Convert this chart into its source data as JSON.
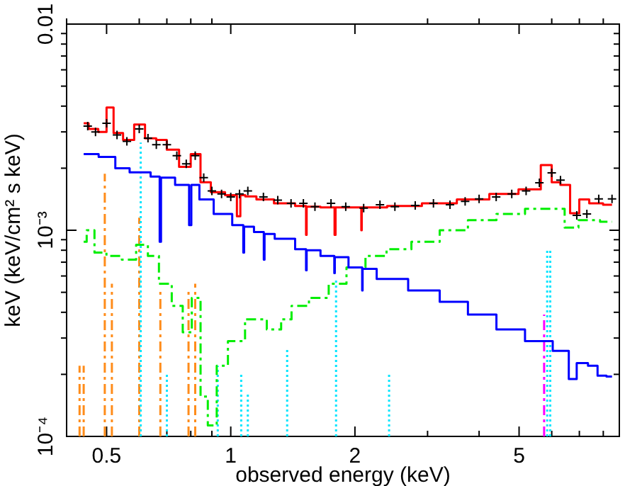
{
  "chart_data": {
    "type": "step",
    "xlabel": "observed energy (keV)",
    "ylabel": "keV (keV/cm² s keV)",
    "log": "xy",
    "grid": false,
    "xlim": [
      0.4,
      8.75
    ],
    "ylim": [
      0.0001,
      0.01
    ],
    "xticks": [
      {
        "value": 0.4,
        "label": null
      },
      0.5,
      {
        "value": 0.6,
        "label": null
      },
      {
        "value": 0.7,
        "label": null
      },
      {
        "value": 0.8,
        "label": null
      },
      {
        "value": 0.9,
        "label": null
      },
      1,
      2,
      {
        "value": 3,
        "label": null
      },
      {
        "value": 4,
        "label": null
      },
      5,
      {
        "value": 6,
        "label": null
      },
      {
        "value": 7,
        "label": null
      },
      {
        "value": 8,
        "label": null
      }
    ],
    "yticks": [
      {
        "value": 0.0001,
        "label": "10⁻⁴"
      },
      {
        "value": 0.0002,
        "label": null
      },
      {
        "value": 0.0003,
        "label": null
      },
      {
        "value": 0.0004,
        "label": null
      },
      {
        "value": 0.0005,
        "label": null
      },
      {
        "value": 0.0006,
        "label": null
      },
      {
        "value": 0.0007,
        "label": null
      },
      {
        "value": 0.0008,
        "label": null
      },
      {
        "value": 0.0009,
        "label": null
      },
      {
        "value": 0.001,
        "label": "10⁻³"
      },
      {
        "value": 0.002,
        "label": null
      },
      {
        "value": 0.003,
        "label": null
      },
      {
        "value": 0.004,
        "label": null
      },
      {
        "value": 0.005,
        "label": null
      },
      {
        "value": 0.006,
        "label": null
      },
      {
        "value": 0.007,
        "label": null
      },
      {
        "value": 0.008,
        "label": null
      },
      {
        "value": 0.009,
        "label": null
      },
      0.01
    ],
    "series": [
      {
        "type": "line",
        "color": "#ff8c1a",
        "line_style": "dashed",
        "x": [
          0.43,
          0.43
        ],
        "values": [
          0.0001,
          0.00022
        ]
      },
      {
        "type": "line",
        "color": "#ff8c1a",
        "line_style": "dashed",
        "x": [
          0.44,
          0.44
        ],
        "values": [
          0.0001,
          0.00022
        ]
      },
      {
        "type": "line",
        "color": "#ff8c1a",
        "line_style": "dashed",
        "x": [
          0.495,
          0.495
        ],
        "values": [
          0.0001,
          0.00188
        ]
      },
      {
        "type": "line",
        "color": "#ff8c1a",
        "line_style": "dashed",
        "x": [
          0.515,
          0.515
        ],
        "values": [
          0.0001,
          0.00055
        ]
      },
      {
        "type": "line",
        "color": "#ff8c1a",
        "line_style": "dashed",
        "x": [
          0.6,
          0.6
        ],
        "values": [
          0.0001,
          0.00115
        ]
      },
      {
        "type": "line",
        "color": "#ff8c1a",
        "line_style": "dashed",
        "x": [
          0.675,
          0.675
        ],
        "values": [
          0.0001,
          0.00051
        ]
      },
      {
        "type": "line",
        "color": "#ff8c1a",
        "line_style": "dashed",
        "x": [
          0.79,
          0.79
        ],
        "values": [
          0.0001,
          0.00051
        ]
      },
      {
        "type": "line",
        "color": "#ff8c1a",
        "line_style": "dashed",
        "x": [
          0.82,
          0.82
        ],
        "values": [
          0.0001,
          0.00055
        ]
      },
      {
        "type": "line",
        "color": "#00e5ff",
        "line_style": "dotted",
        "x": [
          0.605,
          0.605
        ],
        "values": [
          0.0001,
          0.00266
        ]
      },
      {
        "type": "line",
        "color": "#00e5ff",
        "line_style": "dotted",
        "x": [
          0.7,
          0.7
        ],
        "values": [
          0.0001,
          0.0002
        ]
      },
      {
        "type": "line",
        "color": "#00e5ff",
        "line_style": "dotted",
        "x": [
          0.93,
          0.93
        ],
        "values": [
          0.0001,
          0.00022
        ]
      },
      {
        "type": "line",
        "color": "#00e5ff",
        "line_style": "dotted",
        "x": [
          1.06,
          1.06
        ],
        "values": [
          0.0001,
          0.0002
        ]
      },
      {
        "type": "line",
        "color": "#00e5ff",
        "line_style": "dotted",
        "x": [
          1.1,
          1.1
        ],
        "values": [
          0.0001,
          0.00016
        ]
      },
      {
        "type": "line",
        "color": "#00e5ff",
        "line_style": "dotted",
        "x": [
          1.37,
          1.37
        ],
        "values": [
          0.0001,
          0.00027
        ]
      },
      {
        "type": "line",
        "color": "#00e5ff",
        "line_style": "dotted",
        "x": [
          1.8,
          1.8
        ],
        "values": [
          0.0001,
          0.00057
        ]
      },
      {
        "type": "line",
        "color": "#00e5ff",
        "line_style": "dotted",
        "x": [
          2.42,
          2.42
        ],
        "values": [
          0.0001,
          0.0002
        ]
      },
      {
        "type": "line",
        "color": "#00e5ff",
        "line_style": "dotted",
        "x": [
          5.85,
          5.85
        ],
        "values": [
          0.0001,
          0.00081
        ]
      },
      {
        "type": "line",
        "color": "#00e5ff",
        "line_style": "dotted",
        "x": [
          5.95,
          5.95
        ],
        "values": [
          0.0001,
          0.00081
        ]
      },
      {
        "type": "line",
        "color": "#ff00ff",
        "line_style": "dashed",
        "x": [
          5.75,
          5.75
        ],
        "values": [
          0.0001,
          0.00039
        ]
      },
      {
        "color": "#00ee00",
        "line_style": "dashed",
        "x": [
          0.44,
          0.455,
          0.48,
          0.52,
          0.57,
          0.61,
          0.65,
          0.69,
          0.75,
          0.78,
          0.83,
          0.86,
          0.9,
          0.95,
          1.02,
          1.15,
          1.3,
          1.35,
          1.46,
          1.64,
          1.82,
          2.0,
          2.25,
          2.53,
          2.97,
          3.47,
          4.07,
          4.77,
          5.6,
          6.3,
          6.6,
          7.35,
          8.4
        ],
        "values": [
          0.00088,
          0.001,
          0.00078,
          0.00075,
          0.00072,
          0.00085,
          0.00075,
          0.00055,
          0.00043,
          0.00032,
          0.00047,
          0.000156,
          0.000113,
          0.00022,
          0.00029,
          0.00037,
          0.00033,
          0.00037,
          0.00043,
          0.00047,
          0.00055,
          0.00066,
          0.00075,
          0.00081,
          0.00088,
          0.001,
          0.00112,
          0.0012,
          0.00127,
          0.00127,
          0.00103,
          0.00112,
          0.0011
        ]
      },
      {
        "color": "#0000ff",
        "line_style": "solid",
        "x": [
          0.44,
          0.52,
          0.53,
          0.61,
          0.67,
          0.675,
          0.68,
          0.79,
          0.795,
          0.81,
          0.87,
          0.95,
          1.07,
          1.075,
          1.08,
          1.2,
          1.205,
          1.21,
          1.35,
          1.52,
          1.525,
          1.53,
          1.78,
          1.785,
          1.79,
          2.08,
          2.085,
          2.09,
          2.44,
          2.97,
          3.47,
          4.07,
          4.77,
          5.6,
          6.5,
          6.7,
          7.1,
          7.6,
          7.9,
          8.4
        ],
        "values": [
          0.00234,
          0.00227,
          0.002,
          0.00191,
          0.00182,
          0.00088,
          0.0018,
          0.00166,
          0.00106,
          0.00166,
          0.00141,
          0.0012,
          0.00106,
          0.00078,
          0.00104,
          0.00098,
          0.00072,
          0.00096,
          0.00091,
          0.00081,
          0.00064,
          0.0008,
          0.00075,
          0.00062,
          0.00074,
          0.00066,
          0.00051,
          0.00065,
          0.00058,
          0.00051,
          0.00045,
          0.00039,
          0.00033,
          0.00029,
          0.00026,
          0.00019,
          0.000227,
          0.00022,
          0.000197,
          0.000195
        ]
      },
      {
        "color": "#ff0000",
        "line_style": "solid",
        "x": [
          0.44,
          0.465,
          0.49,
          0.51,
          0.53,
          0.567,
          0.6,
          0.64,
          0.68,
          0.72,
          0.78,
          0.82,
          0.87,
          0.92,
          1.02,
          1.05,
          1.06,
          1.11,
          1.2,
          1.35,
          1.52,
          1.525,
          1.53,
          1.78,
          1.79,
          1.8,
          2.07,
          2.075,
          2.08,
          2.17,
          2.64,
          3.2,
          3.9,
          4.6,
          5.4,
          5.9,
          6.1,
          6.5,
          6.8,
          7.2,
          7.6,
          8.4
        ],
        "values": [
          0.0033,
          0.0031,
          0.003,
          0.00394,
          0.00296,
          0.00274,
          0.00326,
          0.00279,
          0.00274,
          0.00246,
          0.00203,
          0.00234,
          0.00171,
          0.00153,
          0.00148,
          0.00117,
          0.00148,
          0.00146,
          0.00141,
          0.00135,
          0.00131,
          0.00095,
          0.0013,
          0.00129,
          0.00095,
          0.00129,
          0.00129,
          0.001,
          0.00129,
          0.00129,
          0.00131,
          0.00135,
          0.00141,
          0.0015,
          0.00158,
          0.00207,
          0.00171,
          0.00166,
          0.00121,
          0.00141,
          0.00135,
          0.00133
        ]
      },
      {
        "type": "scatter",
        "color": "#000000",
        "marker": "cross",
        "x": [
          0.45,
          0.47,
          0.5,
          0.53,
          0.56,
          0.6,
          0.63,
          0.66,
          0.7,
          0.74,
          0.78,
          0.82,
          0.86,
          0.9,
          0.95,
          1.0,
          1.05,
          1.1,
          1.2,
          1.3,
          1.4,
          1.5,
          1.6,
          1.75,
          1.9,
          2.1,
          2.3,
          2.5,
          2.8,
          3.1,
          3.4,
          3.7,
          4.0,
          4.4,
          4.8,
          5.2,
          5.6,
          6.0,
          6.3,
          6.9,
          7.3,
          7.8,
          8.4
        ],
        "values": [
          0.0032,
          0.003,
          0.0033,
          0.0029,
          0.0027,
          0.0031,
          0.0028,
          0.0026,
          0.0026,
          0.0023,
          0.0021,
          0.0023,
          0.0018,
          0.00155,
          0.0015,
          0.00145,
          0.0015,
          0.00155,
          0.00145,
          0.0014,
          0.00135,
          0.00135,
          0.0013,
          0.00135,
          0.0013,
          0.00128,
          0.00133,
          0.0013,
          0.00132,
          0.00135,
          0.00133,
          0.00138,
          0.00142,
          0.00145,
          0.0015,
          0.00155,
          0.0017,
          0.0019,
          0.00175,
          0.00118,
          0.0012,
          0.00142,
          0.00142
        ]
      }
    ]
  }
}
